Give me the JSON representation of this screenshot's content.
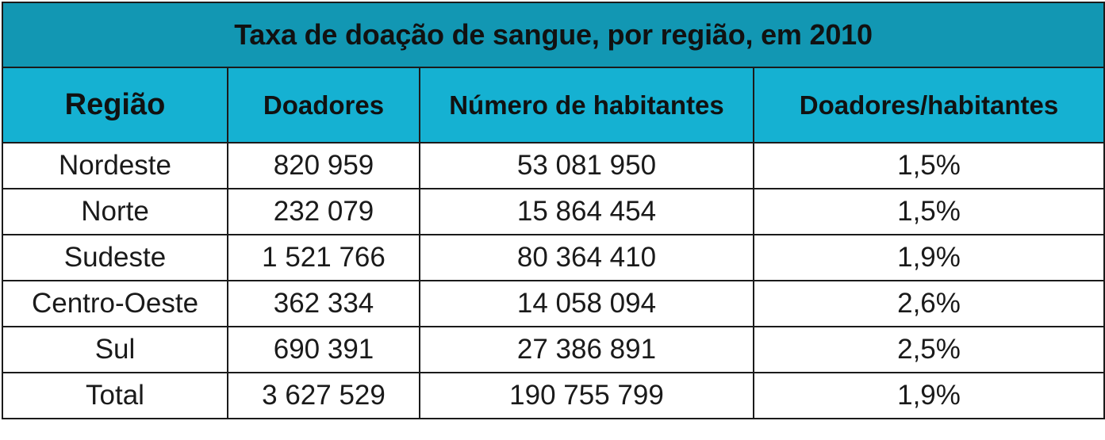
{
  "chart_data": {
    "type": "table",
    "title": "Taxa de doação de sangue, por região, em 2010",
    "columns": [
      "Região",
      "Doadores",
      "Número de habitantes",
      "Doadores/habitantes"
    ],
    "rows": [
      [
        "Nordeste",
        "820 959",
        "53 081 950",
        "1,5%"
      ],
      [
        "Norte",
        "232 079",
        "15 864 454",
        "1,5%"
      ],
      [
        "Sudeste",
        "1 521 766",
        "80 364 410",
        "1,9%"
      ],
      [
        "Centro-Oeste",
        "362 334",
        "14 058 094",
        "2,6%"
      ],
      [
        "Sul",
        "690 391",
        "27 386 891",
        "2,5%"
      ],
      [
        "Total",
        "3 627 529",
        "190 755 799",
        "1,9%"
      ]
    ]
  },
  "colors": {
    "title_bg": "#1297b3",
    "header_bg": "#15b1d2",
    "border": "#1b1b1b",
    "text": "#111111"
  }
}
